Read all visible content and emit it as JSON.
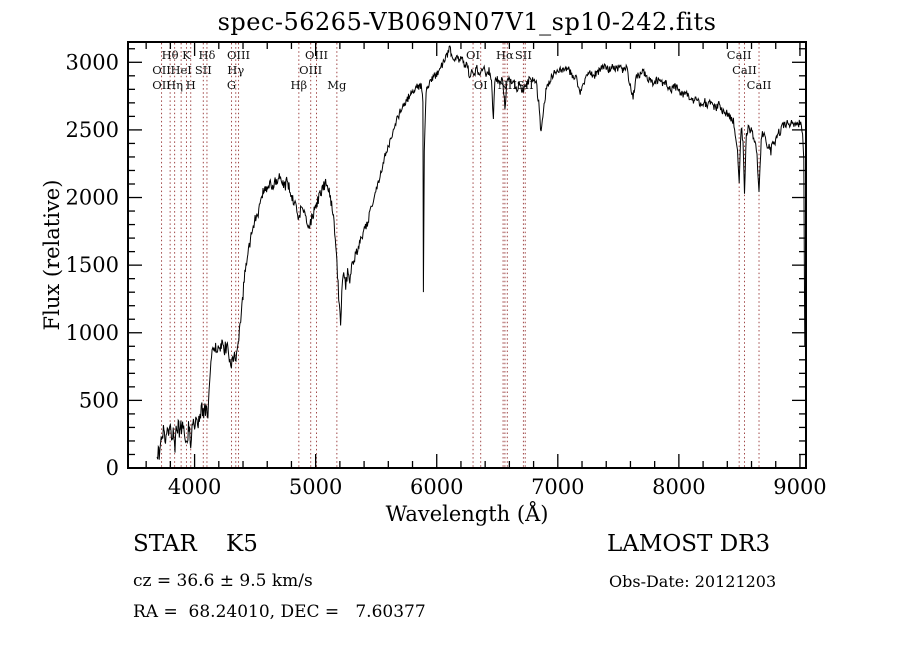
{
  "chart_data": {
    "type": "line",
    "title": "spec-56265-VB069N07V1_sp10-242.fits",
    "xlabel": "Wavelength (Å)",
    "ylabel": "Flux (relative)",
    "xlim": [
      3450,
      9050
    ],
    "ylim": [
      0,
      3150
    ],
    "x_ticks": [
      4000,
      5000,
      6000,
      7000,
      8000,
      9000
    ],
    "y_ticks": [
      0,
      500,
      1000,
      1500,
      2000,
      2500,
      3000
    ],
    "x_minor_step": 200,
    "y_minor_step": 100,
    "grid": false,
    "line_color": "#000000",
    "marker_color": "#a04848",
    "axis_color": "#000000",
    "background": "#ffffff",
    "noise": {
      "seed": 12345,
      "zones": [
        {
          "upto": 4120,
          "amp": 65
        },
        {
          "upto": 4420,
          "amp": 48
        },
        {
          "upto": 5450,
          "amp": 40
        },
        {
          "upto": 8200,
          "amp": 28
        },
        {
          "upto": 9050,
          "amp": 34
        }
      ]
    },
    "spectral_lines": [
      {
        "name": "OII",
        "wavelength": 3727
      },
      {
        "name": "Hθ",
        "wavelength": 3798
      },
      {
        "name": "Hη",
        "wavelength": 3835
      },
      {
        "name": "HeI",
        "wavelength": 3889
      },
      {
        "name": "K",
        "wavelength": 3933
      },
      {
        "name": "H",
        "wavelength": 3968
      },
      {
        "name": "SII",
        "wavelength": 4072
      },
      {
        "name": "Hδ",
        "wavelength": 4102
      },
      {
        "name": "G",
        "wavelength": 4305
      },
      {
        "name": "Hγ",
        "wavelength": 4340
      },
      {
        "name": "OIII",
        "wavelength": 4363
      },
      {
        "name": "Hβ",
        "wavelength": 4861
      },
      {
        "name": "OIII",
        "wavelength": 4959
      },
      {
        "name": "OIII",
        "wavelength": 5007
      },
      {
        "name": "Mg",
        "wavelength": 5175
      },
      {
        "name": "OI",
        "wavelength": 6300
      },
      {
        "name": "OI",
        "wavelength": 6363
      },
      {
        "name": "NII",
        "wavelength": 6548
      },
      {
        "name": "Hα",
        "wavelength": 6563
      },
      {
        "name": "NII",
        "wavelength": 6583
      },
      {
        "name": "SII",
        "wavelength": 6716
      },
      {
        "name": "SII",
        "wavelength": 6731
      },
      {
        "name": "CaII",
        "wavelength": 8498
      },
      {
        "name": "CaII",
        "wavelength": 8542
      },
      {
        "name": "CaII",
        "wavelength": 8662
      }
    ],
    "line_labels": [
      {
        "text": "Hθ",
        "wavelength": 3798,
        "row": 1
      },
      {
        "text": "K",
        "wavelength": 3933,
        "row": 1
      },
      {
        "text": "Hδ",
        "wavelength": 4102,
        "row": 1
      },
      {
        "text": "OIII",
        "wavelength": 4363,
        "row": 1
      },
      {
        "text": "OIII",
        "wavelength": 5007,
        "row": 1
      },
      {
        "text": "OI",
        "wavelength": 6300,
        "row": 1
      },
      {
        "text": "Hα",
        "wavelength": 6563,
        "row": 1
      },
      {
        "text": "SII",
        "wavelength": 6716,
        "row": 1
      },
      {
        "text": "CaII",
        "wavelength": 8498,
        "row": 1
      },
      {
        "text": "OII",
        "wavelength": 3727,
        "row": 2
      },
      {
        "text": "HeI",
        "wavelength": 3889,
        "row": 2
      },
      {
        "text": "SII",
        "wavelength": 4072,
        "row": 2
      },
      {
        "text": "Hγ",
        "wavelength": 4340,
        "row": 2
      },
      {
        "text": "OIII",
        "wavelength": 4959,
        "row": 2
      },
      {
        "text": "CaII",
        "wavelength": 8542,
        "row": 2
      },
      {
        "text": "OII",
        "wavelength": 3727,
        "row": 3
      },
      {
        "text": "Hη",
        "wavelength": 3835,
        "row": 3
      },
      {
        "text": "H",
        "wavelength": 3968,
        "row": 3
      },
      {
        "text": "G",
        "wavelength": 4305,
        "row": 3
      },
      {
        "text": "Hβ",
        "wavelength": 4861,
        "row": 3
      },
      {
        "text": "Mg",
        "wavelength": 5175,
        "row": 3
      },
      {
        "text": "OI",
        "wavelength": 6363,
        "row": 3
      },
      {
        "text": "NII",
        "wavelength": 6583,
        "row": 3
      },
      {
        "text": "SII",
        "wavelength": 6731,
        "row": 3
      },
      {
        "text": "CaII",
        "wavelength": 8662,
        "row": 3
      }
    ],
    "spectrum": [
      [
        3690,
        20
      ],
      [
        3700,
        160
      ],
      [
        3708,
        60
      ],
      [
        3718,
        230
      ],
      [
        3728,
        150
      ],
      [
        3742,
        260
      ],
      [
        3755,
        180
      ],
      [
        3770,
        280
      ],
      [
        3785,
        220
      ],
      [
        3800,
        300
      ],
      [
        3815,
        240
      ],
      [
        3828,
        280
      ],
      [
        3838,
        170
      ],
      [
        3852,
        300
      ],
      [
        3865,
        330
      ],
      [
        3878,
        260
      ],
      [
        3892,
        310
      ],
      [
        3905,
        280
      ],
      [
        3920,
        250
      ],
      [
        3934,
        170
      ],
      [
        3950,
        300
      ],
      [
        3968,
        210
      ],
      [
        3985,
        330
      ],
      [
        4000,
        340
      ],
      [
        4015,
        305
      ],
      [
        4030,
        360
      ],
      [
        4045,
        400
      ],
      [
        4060,
        430
      ],
      [
        4075,
        395
      ],
      [
        4090,
        430
      ],
      [
        4105,
        380
      ],
      [
        4115,
        480
      ],
      [
        4130,
        700
      ],
      [
        4145,
        830
      ],
      [
        4160,
        900
      ],
      [
        4178,
        870
      ],
      [
        4195,
        920
      ],
      [
        4212,
        885
      ],
      [
        4230,
        910
      ],
      [
        4248,
        880
      ],
      [
        4265,
        900
      ],
      [
        4282,
        845
      ],
      [
        4298,
        770
      ],
      [
        4315,
        815
      ],
      [
        4330,
        850
      ],
      [
        4342,
        780
      ],
      [
        4356,
        870
      ],
      [
        4370,
        990
      ],
      [
        4386,
        1130
      ],
      [
        4400,
        1280
      ],
      [
        4420,
        1480
      ],
      [
        4440,
        1610
      ],
      [
        4462,
        1690
      ],
      [
        4485,
        1780
      ],
      [
        4505,
        1850
      ],
      [
        4525,
        1885
      ],
      [
        4545,
        1950
      ],
      [
        4565,
        2050
      ],
      [
        4585,
        2085
      ],
      [
        4605,
        2030
      ],
      [
        4625,
        2120
      ],
      [
        4645,
        2075
      ],
      [
        4665,
        2145
      ],
      [
        4685,
        2100
      ],
      [
        4705,
        2180
      ],
      [
        4725,
        2130
      ],
      [
        4745,
        2080
      ],
      [
        4765,
        2125
      ],
      [
        4785,
        2060
      ],
      [
        4805,
        2010
      ],
      [
        4825,
        1965
      ],
      [
        4845,
        1915
      ],
      [
        4861,
        1830
      ],
      [
        4880,
        1935
      ],
      [
        4900,
        1890
      ],
      [
        4920,
        1840
      ],
      [
        4942,
        1790
      ],
      [
        4962,
        1830
      ],
      [
        4982,
        1885
      ],
      [
        5002,
        1930
      ],
      [
        5022,
        1985
      ],
      [
        5042,
        2030
      ],
      [
        5062,
        2080
      ],
      [
        5082,
        2105
      ],
      [
        5102,
        2075
      ],
      [
        5122,
        2000
      ],
      [
        5142,
        1880
      ],
      [
        5162,
        1690
      ],
      [
        5180,
        1440
      ],
      [
        5196,
        1190
      ],
      [
        5206,
        1040
      ],
      [
        5216,
        1340
      ],
      [
        5232,
        1430
      ],
      [
        5248,
        1345
      ],
      [
        5264,
        1455
      ],
      [
        5282,
        1400
      ],
      [
        5302,
        1520
      ],
      [
        5332,
        1580
      ],
      [
        5362,
        1650
      ],
      [
        5392,
        1720
      ],
      [
        5422,
        1800
      ],
      [
        5452,
        1900
      ],
      [
        5482,
        2000
      ],
      [
        5512,
        2100
      ],
      [
        5542,
        2200
      ],
      [
        5572,
        2300
      ],
      [
        5602,
        2380
      ],
      [
        5632,
        2470
      ],
      [
        5662,
        2550
      ],
      [
        5692,
        2620
      ],
      [
        5722,
        2680
      ],
      [
        5752,
        2720
      ],
      [
        5782,
        2760
      ],
      [
        5812,
        2790
      ],
      [
        5842,
        2820
      ],
      [
        5872,
        2830
      ],
      [
        5886,
        2700
      ],
      [
        5890,
        1300
      ],
      [
        5897,
        2350
      ],
      [
        5912,
        2780
      ],
      [
        5932,
        2820
      ],
      [
        5952,
        2860
      ],
      [
        5975,
        2885
      ],
      [
        6000,
        2920
      ],
      [
        6030,
        2960
      ],
      [
        6060,
        3010
      ],
      [
        6088,
        3060
      ],
      [
        6108,
        3100
      ],
      [
        6128,
        3035
      ],
      [
        6148,
        2990
      ],
      [
        6168,
        3060
      ],
      [
        6188,
        3000
      ],
      [
        6208,
        3050
      ],
      [
        6228,
        2955
      ],
      [
        6250,
        2990
      ],
      [
        6270,
        2900
      ],
      [
        6290,
        2950
      ],
      [
        6312,
        2915
      ],
      [
        6332,
        2960
      ],
      [
        6352,
        2885
      ],
      [
        6372,
        2940
      ],
      [
        6392,
        2960
      ],
      [
        6412,
        2900
      ],
      [
        6432,
        2940
      ],
      [
        6452,
        2865
      ],
      [
        6468,
        2590
      ],
      [
        6480,
        2850
      ],
      [
        6500,
        2880
      ],
      [
        6522,
        2835
      ],
      [
        6542,
        2880
      ],
      [
        6563,
        2670
      ],
      [
        6582,
        2860
      ],
      [
        6602,
        2880
      ],
      [
        6622,
        2830
      ],
      [
        6642,
        2860
      ],
      [
        6662,
        2800
      ],
      [
        6682,
        2840
      ],
      [
        6702,
        2770
      ],
      [
        6722,
        2810
      ],
      [
        6742,
        2840
      ],
      [
        6762,
        2870
      ],
      [
        6782,
        2890
      ],
      [
        6802,
        2870
      ],
      [
        6822,
        2840
      ],
      [
        6842,
        2700
      ],
      [
        6862,
        2470
      ],
      [
        6882,
        2650
      ],
      [
        6902,
        2780
      ],
      [
        6922,
        2840
      ],
      [
        6942,
        2880
      ],
      [
        6962,
        2910
      ],
      [
        6985,
        2930
      ],
      [
        7010,
        2950
      ],
      [
        7040,
        2930
      ],
      [
        7070,
        2960
      ],
      [
        7100,
        2930
      ],
      [
        7130,
        2900
      ],
      [
        7160,
        2865
      ],
      [
        7185,
        2755
      ],
      [
        7210,
        2850
      ],
      [
        7240,
        2900
      ],
      [
        7270,
        2930
      ],
      [
        7300,
        2900
      ],
      [
        7330,
        2930
      ],
      [
        7360,
        2950
      ],
      [
        7390,
        2970
      ],
      [
        7420,
        2940
      ],
      [
        7450,
        2970
      ],
      [
        7480,
        2950
      ],
      [
        7510,
        2970
      ],
      [
        7540,
        2940
      ],
      [
        7570,
        2960
      ],
      [
        7600,
        2815
      ],
      [
        7622,
        2745
      ],
      [
        7645,
        2880
      ],
      [
        7672,
        2910
      ],
      [
        7700,
        2930
      ],
      [
        7730,
        2900
      ],
      [
        7760,
        2870
      ],
      [
        7790,
        2850
      ],
      [
        7820,
        2870
      ],
      [
        7850,
        2840
      ],
      [
        7880,
        2860
      ],
      [
        7910,
        2820
      ],
      [
        7940,
        2800
      ],
      [
        7970,
        2820
      ],
      [
        8000,
        2790
      ],
      [
        8030,
        2760
      ],
      [
        8060,
        2780
      ],
      [
        8090,
        2740
      ],
      [
        8120,
        2710
      ],
      [
        8150,
        2730
      ],
      [
        8180,
        2690
      ],
      [
        8210,
        2710
      ],
      [
        8240,
        2680
      ],
      [
        8270,
        2700
      ],
      [
        8300,
        2660
      ],
      [
        8330,
        2680
      ],
      [
        8360,
        2640
      ],
      [
        8390,
        2620
      ],
      [
        8420,
        2600
      ],
      [
        8450,
        2565
      ],
      [
        8480,
        2390
      ],
      [
        8498,
        2140
      ],
      [
        8515,
        2500
      ],
      [
        8530,
        2440
      ],
      [
        8542,
        2040
      ],
      [
        8558,
        2470
      ],
      [
        8578,
        2520
      ],
      [
        8598,
        2490
      ],
      [
        8618,
        2450
      ],
      [
        8640,
        2370
      ],
      [
        8662,
        2070
      ],
      [
        8680,
        2440
      ],
      [
        8700,
        2480
      ],
      [
        8720,
        2420
      ],
      [
        8740,
        2375
      ],
      [
        8760,
        2345
      ],
      [
        8780,
        2400
      ],
      [
        8800,
        2430
      ],
      [
        8820,
        2470
      ],
      [
        8840,
        2500
      ],
      [
        8860,
        2520
      ],
      [
        8880,
        2540
      ],
      [
        8900,
        2550
      ],
      [
        8920,
        2530
      ],
      [
        8940,
        2550
      ],
      [
        8960,
        2540
      ],
      [
        8980,
        2550
      ],
      [
        9000,
        2540
      ],
      [
        9012,
        2515
      ],
      [
        9022,
        2480
      ],
      [
        9032,
        2250
      ],
      [
        9040,
        900
      ]
    ]
  },
  "annotations": {
    "class_label": "STAR    K5",
    "survey": "LAMOST DR3",
    "cz": "cz = 36.6 ± 9.5 km/s",
    "obs_date": "Obs-Date: 20121203",
    "radec": "RA =  68.24010, DEC =   7.60377"
  }
}
